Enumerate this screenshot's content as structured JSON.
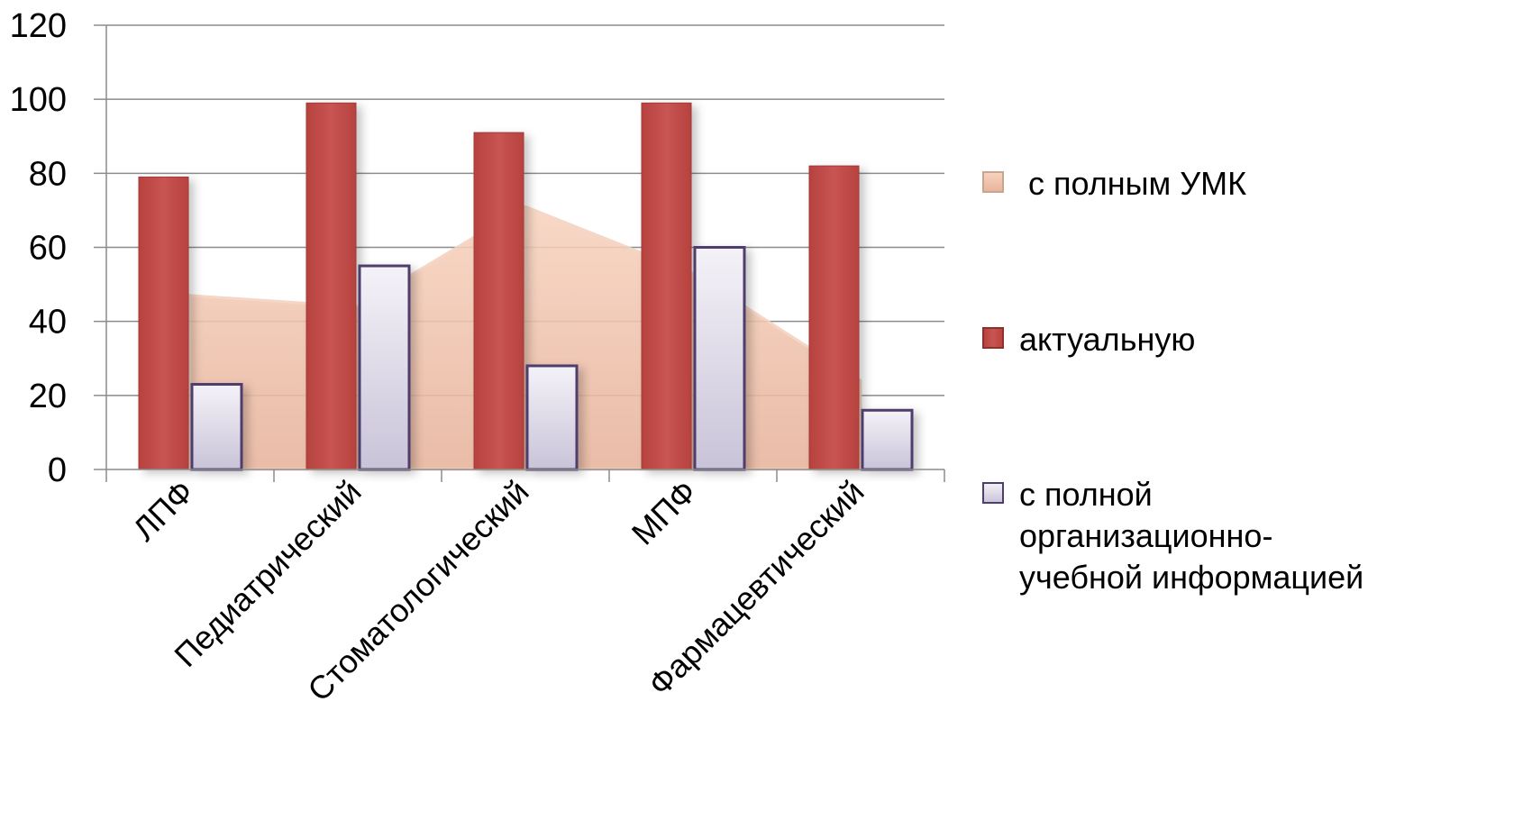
{
  "chart_data": {
    "type": "bar",
    "title": "",
    "xlabel": "",
    "ylabel": "",
    "ylim": [
      0,
      120
    ],
    "yticks": [
      "0",
      "20",
      "40",
      "60",
      "80",
      "100",
      "120"
    ],
    "grid": true,
    "legend_position": "right",
    "categories": [
      "ЛПФ",
      "Педиатрический",
      "Стоматологический",
      "МПФ",
      "Фармацевтический"
    ],
    "series": [
      {
        "name": "с полным УМК",
        "type": "area",
        "values": [
          47,
          44,
          71,
          53,
          24
        ],
        "color": "#f1c3a8"
      },
      {
        "name": "актуальную",
        "type": "bar",
        "values": [
          79,
          99,
          91,
          99,
          82
        ],
        "color": "#c0504d"
      },
      {
        "name": "с  полной организационно-учебной информацией",
        "type": "bar",
        "values": [
          23,
          55,
          28,
          60,
          16
        ],
        "color": "#dcd8e6"
      }
    ],
    "legend": [
      {
        "lines": [
          "с полным УМК"
        ]
      },
      {
        "lines": [
          "актуальную"
        ]
      },
      {
        "lines": [
          "с  полной",
          "организационно-",
          "учебной информацией"
        ]
      }
    ]
  }
}
